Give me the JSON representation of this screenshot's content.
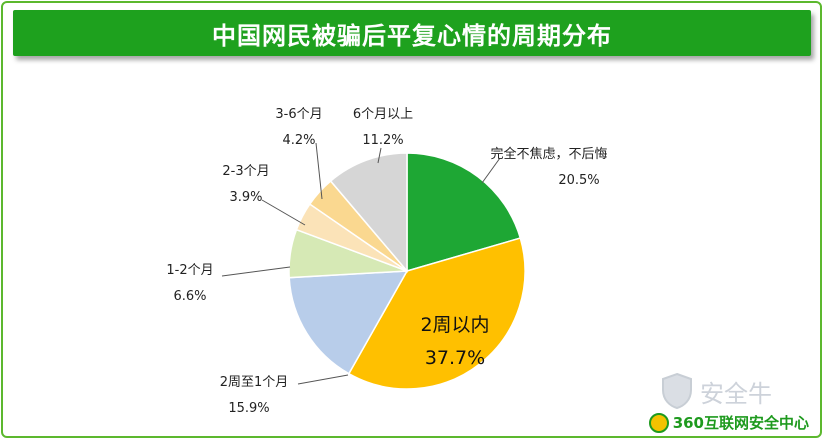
{
  "header": {
    "title": "中国网民被骗后平复心情的周期分布"
  },
  "chart_data": {
    "type": "pie",
    "title": "中国网民被骗后平复心情的周期分布",
    "slices": [
      {
        "label": "完全不焦虑，不后悔",
        "value": 20.5,
        "value_label": "20.5%",
        "color": "#1ea734"
      },
      {
        "label": "2周以内",
        "value": 37.7,
        "value_label": "37.7%",
        "color": "#ffc000"
      },
      {
        "label": "2周至1个月",
        "value": 15.9,
        "value_label": "15.9%",
        "color": "#b8cdea"
      },
      {
        "label": "1-2个月",
        "value": 6.6,
        "value_label": "6.6%",
        "color": "#d6e9b5"
      },
      {
        "label": "2-3个月",
        "value": 3.9,
        "value_label": "3.9%",
        "color": "#fbe3b8"
      },
      {
        "label": "3-6个月",
        "value": 4.2,
        "value_label": "4.2%",
        "color": "#fad890"
      },
      {
        "label": "6个月以上",
        "value": 11.2,
        "value_label": "11.2%",
        "color": "#d6d6d6"
      }
    ],
    "start_angle": "12 o'clock",
    "direction": "clockwise"
  },
  "branding": {
    "logo_text": "360互联网安全中心",
    "watermark_text": "安全牛"
  }
}
